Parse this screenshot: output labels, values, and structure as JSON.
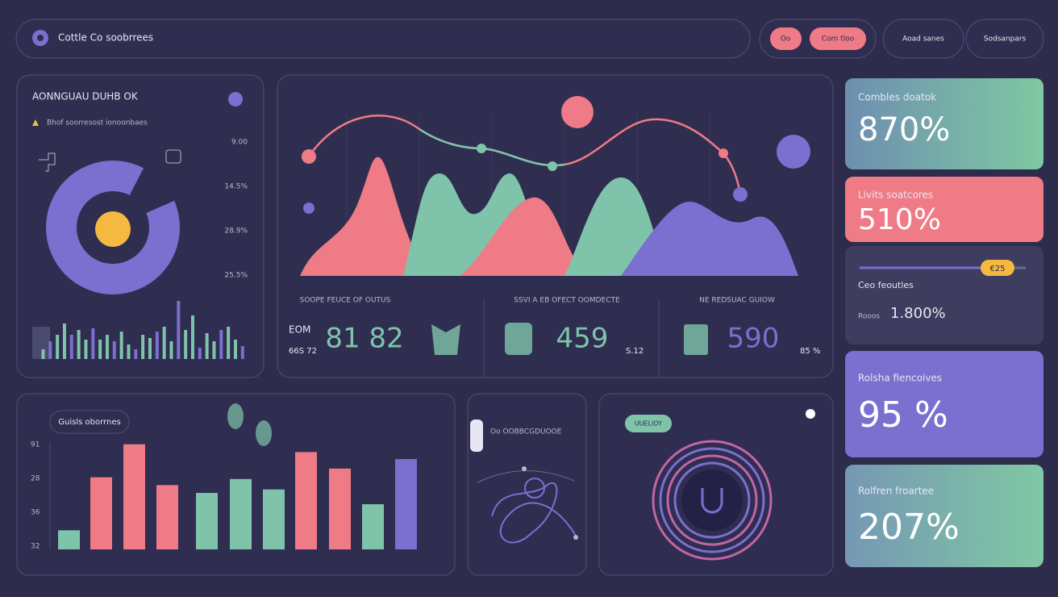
{
  "header": {
    "title": "Cottle Co soobrrees",
    "buttons": [
      "Oo",
      "Com tloo",
      "Aoad sanes",
      "Sodsanpars"
    ]
  },
  "overview": {
    "title": "AONNGUAU DUHB OK",
    "subtitle": "Bhof soorresost ionoonbaes",
    "ticks": [
      "9.00",
      "14.5%",
      "28.9%",
      "25.5%"
    ],
    "bars": [
      40,
      12,
      22,
      30,
      44,
      30,
      36,
      24,
      38,
      24,
      30,
      22,
      34,
      18,
      12,
      30,
      26,
      34,
      40,
      22,
      72,
      36,
      54,
      14,
      32,
      22,
      36,
      40,
      24,
      16
    ],
    "bars_ylim": [
      0,
      80
    ]
  },
  "stats": [
    {
      "label": "SOOPE FEUCE OF OUTUS",
      "sub": "EOM",
      "value": "81 82",
      "note": "66S 72"
    },
    {
      "label": "SSVI A EB OFECT OOMDECTE",
      "value": "459",
      "note": "S.12"
    },
    {
      "label": "NE REDSUAC GUIOW",
      "value": "590",
      "note": "85 %"
    }
  ],
  "cards": [
    {
      "label": "Combles doatok",
      "value": "870%"
    },
    {
      "label": "Livits soatcores",
      "value": "510%"
    },
    {
      "label": "Ceo feoutles",
      "badge": "€25",
      "sub": "Rooos",
      "value": "1.800%"
    },
    {
      "label": "Rolsha fiencoives",
      "value": "95 %"
    },
    {
      "label": "Rolfren froartee",
      "value": "207%"
    }
  ],
  "bar_panel": {
    "title": "Guisls oborrnes",
    "ylabels": [
      "91",
      "28",
      "36",
      "32"
    ],
    "values": [
      22,
      83,
      121,
      74,
      65,
      81,
      69,
      112,
      93,
      52,
      104
    ],
    "colors": [
      "#7fc4aa",
      "#ef7b86",
      "#ef7b86",
      "#ef7b86",
      "#7fc4aa",
      "#7fc4aa",
      "#7fc4aa",
      "#ef7b86",
      "#ef7b86",
      "#7fc4aa",
      "#7b6fd0"
    ],
    "ylim": [
      0,
      130
    ]
  },
  "flow_panel": {
    "title": "Oo OOBBCGDUOOE"
  },
  "ring_panel": {
    "badge": "UUELIOY"
  }
}
